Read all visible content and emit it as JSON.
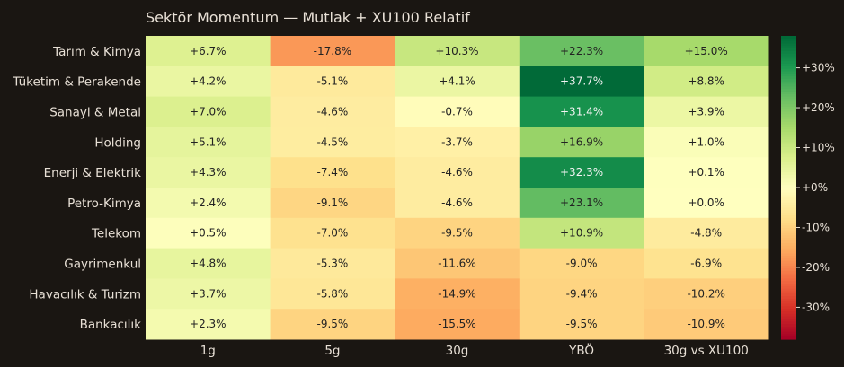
{
  "chart_data": {
    "type": "heatmap",
    "title": "Sektör Momentum — Mutlak + XU100 Relatif",
    "rows": [
      "Tarım & Kimya",
      "Tüketim & Perakende",
      "Sanayi & Metal",
      "Holding",
      "Enerji & Elektrik",
      "Petro-Kimya",
      "Telekom",
      "Gayrimenkul",
      "Havacılık & Turizm",
      "Bankacılık"
    ],
    "columns": [
      "1g",
      "5g",
      "30g",
      "YBÖ",
      "30g vs XU100"
    ],
    "values": [
      [
        6.7,
        -17.8,
        10.3,
        22.3,
        15.0
      ],
      [
        4.2,
        -5.1,
        4.1,
        37.7,
        8.8
      ],
      [
        7.0,
        -4.6,
        -0.7,
        31.4,
        3.9
      ],
      [
        5.1,
        -4.5,
        -3.7,
        16.9,
        1.0
      ],
      [
        4.3,
        -7.4,
        -4.6,
        32.3,
        0.1
      ],
      [
        2.4,
        -9.1,
        -4.6,
        23.1,
        0.0
      ],
      [
        0.5,
        -7.0,
        -9.5,
        10.9,
        -4.8
      ],
      [
        4.8,
        -5.3,
        -11.6,
        -9.0,
        -6.9
      ],
      [
        3.7,
        -5.8,
        -14.9,
        -9.4,
        -10.2
      ],
      [
        2.3,
        -9.5,
        -15.5,
        -9.5,
        -10.9
      ]
    ],
    "cell_labels": [
      [
        "+6.7%",
        "-17.8%",
        "+10.3%",
        "+22.3%",
        "+15.0%"
      ],
      [
        "+4.2%",
        "-5.1%",
        "+4.1%",
        "+37.7%",
        "+8.8%"
      ],
      [
        "+7.0%",
        "-4.6%",
        "-0.7%",
        "+31.4%",
        "+3.9%"
      ],
      [
        "+5.1%",
        "-4.5%",
        "-3.7%",
        "+16.9%",
        "+1.0%"
      ],
      [
        "+4.3%",
        "-7.4%",
        "-4.6%",
        "+32.3%",
        "+0.1%"
      ],
      [
        "+2.4%",
        "-9.1%",
        "-4.6%",
        "+23.1%",
        "+0.0%"
      ],
      [
        "+0.5%",
        "-7.0%",
        "-9.5%",
        "+10.9%",
        "-4.8%"
      ],
      [
        "+4.8%",
        "-5.3%",
        "-11.6%",
        "-9.0%",
        "-6.9%"
      ],
      [
        "+3.7%",
        "-5.8%",
        "-14.9%",
        "-9.4%",
        "-10.2%"
      ],
      [
        "+2.3%",
        "-9.5%",
        "-15.5%",
        "-9.5%",
        "-10.9%"
      ]
    ],
    "colorscale": "RdYlGn",
    "zmin": -38,
    "zmax": 38,
    "colorbar_ticks": [
      30,
      20,
      10,
      0,
      -10,
      -20,
      -30
    ],
    "colorbar_tick_labels": [
      "+30%",
      "+20%",
      "+10%",
      "+0%",
      "-10%",
      "-20%",
      "-30%"
    ],
    "background": "#1a1612"
  }
}
